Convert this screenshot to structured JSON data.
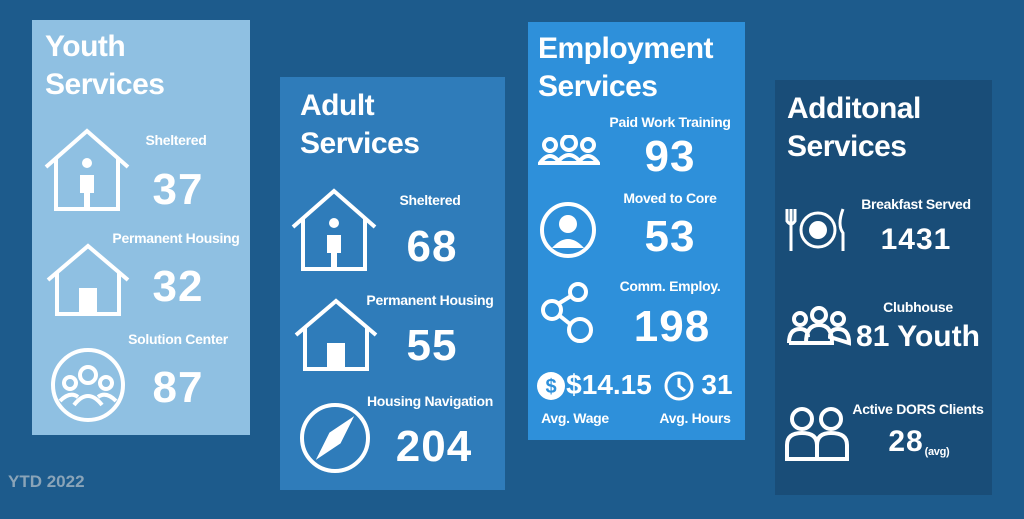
{
  "panels": [
    {
      "title": "Youth Services",
      "items": [
        {
          "label": "Sheltered",
          "value": 37
        },
        {
          "label": "Permanent Housing",
          "value": 32
        },
        {
          "label": "Solution Center",
          "value": 87
        }
      ]
    },
    {
      "title": "Adult Services",
      "items": [
        {
          "label": "Sheltered",
          "value": 68
        },
        {
          "label": "Permanent Housing",
          "value": 55
        },
        {
          "label": "Housing Navigation",
          "value": 204
        }
      ]
    },
    {
      "title": "Employment Services",
      "items": [
        {
          "label": "Paid Work Training",
          "value": 93
        },
        {
          "label": "Moved to Core",
          "value": 53
        },
        {
          "label": "Comm. Employ.",
          "value": 198
        }
      ],
      "extras": [
        {
          "value": "$14.15",
          "label": "Avg. Wage"
        },
        {
          "value": 31,
          "label": "Avg. Hours"
        }
      ]
    },
    {
      "title": "Additonal Services",
      "items": [
        {
          "label": "Breakfast Served",
          "value": 1431
        },
        {
          "label": "Clubhouse",
          "value": "81 Youth"
        },
        {
          "label": "Active DORS Clients",
          "value": 28,
          "note": "(avg)"
        }
      ]
    }
  ],
  "footer": "YTD 2022"
}
